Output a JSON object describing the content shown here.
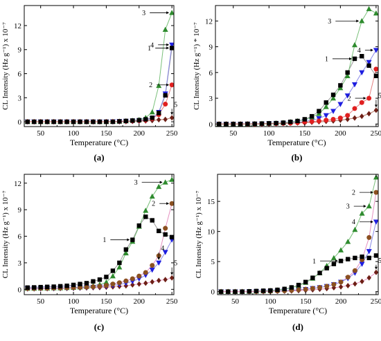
{
  "chart_data": [
    {
      "type": "scatter",
      "panel_label": "(a)",
      "ylabel": "CL Intensity (Hz g⁻¹) x 10⁻⁷",
      "xlabel": "Temperature (°C)",
      "xlim": [
        25,
        253
      ],
      "ylim": [
        -0.6,
        14.5
      ],
      "xticks": [
        "50",
        "100",
        "150",
        "200",
        "250"
      ],
      "yticks": [
        "0",
        "3",
        "6",
        "9",
        "12"
      ],
      "x": [
        30,
        40,
        50,
        60,
        70,
        80,
        90,
        100,
        110,
        120,
        130,
        140,
        150,
        160,
        170,
        180,
        190,
        200,
        210,
        220,
        230,
        240,
        250
      ],
      "series": [
        {
          "name": "1",
          "marker": "square",
          "color": "#000000",
          "line_color": "#9a9a9a",
          "values": [
            0,
            0,
            0,
            0,
            0,
            0,
            0,
            0,
            0,
            0,
            0,
            0,
            0,
            0,
            0.05,
            0.1,
            0.15,
            0.2,
            0.3,
            0.5,
            1.1,
            3.3,
            9.2
          ]
        },
        {
          "name": "2",
          "marker": "circle",
          "color": "#e02020",
          "line_color": "#e58080",
          "values": [
            0,
            0,
            0,
            0,
            0,
            0,
            0,
            0,
            0,
            0,
            0,
            0,
            0,
            0.02,
            0.05,
            0.08,
            0.1,
            0.15,
            0.2,
            0.4,
            0.9,
            2.2,
            4.6
          ]
        },
        {
          "name": "3",
          "marker": "triangle-up",
          "color": "#2e8b2e",
          "line_color": "#7ac07a",
          "values": [
            0,
            0,
            0,
            0,
            0,
            0,
            0,
            0,
            0,
            0,
            0,
            0,
            0,
            0.02,
            0.05,
            0.1,
            0.15,
            0.25,
            0.5,
            1.2,
            4.5,
            11.5,
            13.6
          ]
        },
        {
          "name": "4",
          "marker": "triangle-down",
          "color": "#1e1ee0",
          "line_color": "#8a8ae8",
          "values": [
            0,
            0,
            0,
            0,
            0,
            0,
            0,
            0,
            0,
            0,
            0,
            0,
            0,
            0.02,
            0.05,
            0.08,
            0.1,
            0.15,
            0.2,
            0.4,
            1.2,
            3.5,
            9.6
          ]
        },
        {
          "name": "5",
          "marker": "diamond",
          "color": "#6e1f16",
          "line_color": "#b07060",
          "values": [
            0,
            0,
            0,
            0,
            0,
            0,
            0,
            0,
            0,
            0,
            0,
            0,
            0,
            0,
            0,
            0.02,
            0.05,
            0.08,
            0.1,
            0.15,
            0.25,
            0.3,
            0.5
          ]
        }
      ]
    },
    {
      "type": "scatter",
      "panel_label": "(b)",
      "ylabel": "CL Intensity (Hz g⁻¹) * 10⁻⁷",
      "xlabel": "Temperature (°C)",
      "xlim": [
        25,
        253
      ],
      "ylim": [
        -0.3,
        13.8
      ],
      "xticks": [
        "50",
        "100",
        "150",
        "200",
        "250"
      ],
      "yticks": [
        "0",
        "3",
        "6",
        "9",
        "12"
      ],
      "x": [
        30,
        40,
        50,
        60,
        70,
        80,
        90,
        100,
        110,
        120,
        130,
        140,
        150,
        160,
        170,
        180,
        190,
        200,
        210,
        220,
        230,
        240,
        250
      ],
      "series": [
        {
          "name": "1",
          "marker": "square",
          "color": "#000000",
          "line_color": "#9a9a9a",
          "values": [
            0,
            0,
            0,
            0,
            0.02,
            0.03,
            0.05,
            0.08,
            0.1,
            0.15,
            0.25,
            0.35,
            0.55,
            0.9,
            1.5,
            2.5,
            3.4,
            4.5,
            6.0,
            7.6,
            7.9,
            6.8,
            5.6
          ]
        },
        {
          "name": "2",
          "marker": "circle",
          "color": "#e02020",
          "line_color": "#e58080",
          "values": [
            0,
            0,
            0,
            0,
            0,
            0,
            0.02,
            0.03,
            0.05,
            0.08,
            0.1,
            0.15,
            0.2,
            0.28,
            0.35,
            0.45,
            0.55,
            0.7,
            1.0,
            1.8,
            2.5,
            3.0,
            6.4
          ]
        },
        {
          "name": "3",
          "marker": "triangle-up",
          "color": "#2e8b2e",
          "line_color": "#7ac07a",
          "values": [
            0,
            0,
            0,
            0,
            0,
            0.02,
            0.04,
            0.06,
            0.1,
            0.15,
            0.25,
            0.35,
            0.5,
            0.8,
            1.2,
            2.0,
            3.0,
            4.2,
            5.6,
            9.2,
            12.0,
            13.4,
            12.9
          ]
        },
        {
          "name": "4",
          "marker": "triangle-down",
          "color": "#1e1ee0",
          "line_color": "#8a8ae8",
          "values": [
            0,
            0,
            0,
            0,
            0,
            0,
            0.02,
            0.04,
            0.06,
            0.1,
            0.15,
            0.2,
            0.3,
            0.45,
            0.65,
            1.0,
            1.5,
            2.3,
            3.3,
            4.6,
            6.0,
            7.2,
            8.6
          ]
        },
        {
          "name": "5",
          "marker": "diamond",
          "color": "#6e1f16",
          "line_color": "#b07060",
          "values": [
            0,
            0,
            0,
            0,
            0,
            0,
            0.02,
            0.03,
            0.05,
            0.07,
            0.1,
            0.12,
            0.15,
            0.2,
            0.25,
            0.3,
            0.35,
            0.45,
            0.55,
            0.7,
            0.9,
            1.2,
            1.6
          ]
        }
      ]
    },
    {
      "type": "scatter",
      "panel_label": "(c)",
      "ylabel": "CL Intensity (Hz g⁻¹) x 10⁻⁷",
      "xlabel": "Temperature (°C)",
      "xlim": [
        25,
        253
      ],
      "ylim": [
        -0.6,
        13.0
      ],
      "xticks": [
        "50",
        "100",
        "150",
        "200",
        "250"
      ],
      "yticks": [
        "0",
        "3",
        "6",
        "9",
        "12"
      ],
      "x": [
        30,
        40,
        50,
        60,
        70,
        80,
        90,
        100,
        110,
        120,
        130,
        140,
        150,
        160,
        170,
        180,
        190,
        200,
        210,
        220,
        230,
        240,
        250
      ],
      "series": [
        {
          "name": "1",
          "marker": "square",
          "color": "#000000",
          "line_color": "#9a9a9a",
          "values": [
            0.2,
            0.22,
            0.25,
            0.28,
            0.3,
            0.35,
            0.4,
            0.5,
            0.6,
            0.7,
            0.9,
            1.1,
            1.4,
            2.1,
            3.0,
            4.5,
            5.6,
            7.2,
            8.2,
            7.8,
            6.6,
            6.2,
            5.9
          ]
        },
        {
          "name": "2",
          "marker": "circle",
          "color": "#8b5020",
          "line_color": "#e590c0",
          "values": [
            0.1,
            0.1,
            0.12,
            0.12,
            0.15,
            0.15,
            0.18,
            0.2,
            0.22,
            0.25,
            0.3,
            0.35,
            0.45,
            0.6,
            0.75,
            0.95,
            1.2,
            1.5,
            1.9,
            2.7,
            3.8,
            6.9,
            9.7
          ]
        },
        {
          "name": "3",
          "marker": "triangle-up",
          "color": "#2e8b2e",
          "line_color": "#7ac07a",
          "values": [
            0.1,
            0.1,
            0.12,
            0.12,
            0.15,
            0.15,
            0.18,
            0.2,
            0.25,
            0.3,
            0.4,
            0.55,
            0.8,
            1.5,
            2.5,
            4.1,
            5.4,
            7.1,
            8.9,
            10.5,
            11.6,
            12.1,
            12.4
          ]
        },
        {
          "name": "4",
          "marker": "triangle-down",
          "color": "#1e1ee0",
          "line_color": "#8a8ae8",
          "values": [
            0.1,
            0.1,
            0.1,
            0.12,
            0.12,
            0.15,
            0.15,
            0.18,
            0.2,
            0.22,
            0.25,
            0.3,
            0.35,
            0.45,
            0.55,
            0.7,
            0.9,
            1.2,
            1.6,
            2.2,
            3.0,
            4.2,
            5.6
          ]
        },
        {
          "name": "5",
          "marker": "diamond",
          "color": "#6e1f16",
          "line_color": "#e590c0",
          "values": [
            0.05,
            0.05,
            0.06,
            0.07,
            0.08,
            0.09,
            0.1,
            0.12,
            0.14,
            0.16,
            0.18,
            0.2,
            0.24,
            0.28,
            0.34,
            0.4,
            0.5,
            0.6,
            0.7,
            0.85,
            1.0,
            1.1,
            1.3
          ]
        }
      ]
    },
    {
      "type": "scatter",
      "panel_label": "(d)",
      "ylabel": "CL Intensity (Hz g⁻¹) x 10⁻⁷",
      "xlabel": "Temperature (°C)",
      "xlim": [
        25,
        253
      ],
      "ylim": [
        -0.5,
        19.5
      ],
      "xticks": [
        "50",
        "100",
        "150",
        "200",
        "250"
      ],
      "yticks": [
        "0",
        "5",
        "10",
        "15"
      ],
      "x": [
        30,
        40,
        50,
        60,
        70,
        80,
        90,
        100,
        110,
        120,
        130,
        140,
        150,
        160,
        170,
        180,
        190,
        200,
        210,
        220,
        230,
        240,
        250
      ],
      "series": [
        {
          "name": "1",
          "marker": "square",
          "color": "#000000",
          "line_color": "#9a9a9a",
          "values": [
            0,
            0,
            0,
            0,
            0.05,
            0.1,
            0.15,
            0.2,
            0.3,
            0.45,
            0.7,
            1.1,
            1.6,
            2.3,
            3.1,
            3.9,
            4.6,
            5.1,
            5.4,
            5.6,
            5.8,
            5.6,
            6.0
          ]
        },
        {
          "name": "2",
          "marker": "circle",
          "color": "#8b5020",
          "line_color": "#e590c0",
          "values": [
            0,
            0,
            0,
            0,
            0,
            0.02,
            0.04,
            0.06,
            0.1,
            0.14,
            0.2,
            0.3,
            0.4,
            0.55,
            0.7,
            0.9,
            1.2,
            1.6,
            2.4,
            3.5,
            5.3,
            9.0,
            16.5
          ]
        },
        {
          "name": "3",
          "marker": "triangle-up",
          "color": "#2e8b2e",
          "line_color": "#7ac07a",
          "values": [
            0,
            0,
            0,
            0,
            0.02,
            0.05,
            0.1,
            0.15,
            0.25,
            0.4,
            0.65,
            1.0,
            1.5,
            2.2,
            3.1,
            4.3,
            5.6,
            6.9,
            8.3,
            10.3,
            13.0,
            14.2,
            19.0
          ]
        },
        {
          "name": "4",
          "marker": "triangle-down",
          "color": "#1e1ee0",
          "line_color": "#8a8ae8",
          "values": [
            0,
            0,
            0,
            0,
            0,
            0.02,
            0.04,
            0.06,
            0.1,
            0.15,
            0.22,
            0.3,
            0.4,
            0.55,
            0.7,
            0.9,
            1.2,
            1.6,
            2.2,
            3.1,
            4.6,
            6.7,
            11.6
          ]
        },
        {
          "name": "5",
          "marker": "diamond",
          "color": "#6e1f16",
          "line_color": "#e590c0",
          "values": [
            0,
            0,
            0,
            0,
            0,
            0,
            0.02,
            0.04,
            0.06,
            0.08,
            0.12,
            0.16,
            0.22,
            0.3,
            0.4,
            0.5,
            0.65,
            0.8,
            1.0,
            1.3,
            1.7,
            2.3,
            3.2
          ]
        }
      ]
    }
  ]
}
